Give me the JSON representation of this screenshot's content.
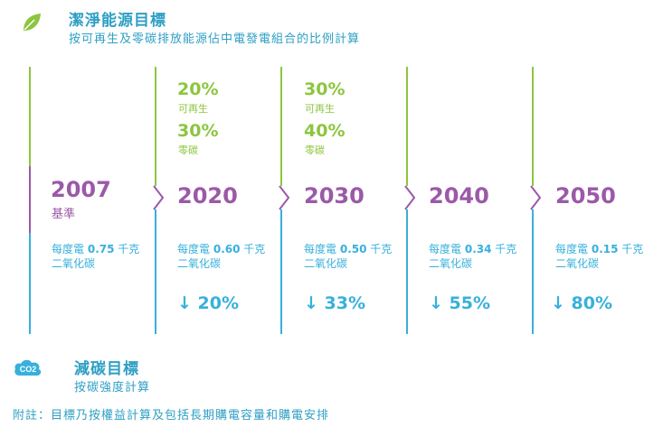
{
  "header": {
    "title": "潔淨能源目標",
    "subtitle": "按可再生及零碳排放能源佔中電發電組合的比例計算",
    "icon": "leaf-icon"
  },
  "colors": {
    "green": "#8cc63f",
    "purple": "#9b59a8",
    "blue": "#37b0dc",
    "text_blue": "#2d9fc4"
  },
  "timeline": [
    {
      "year": "2007",
      "baseline_label": "基準",
      "renewable_pct": "",
      "renewable_label": "",
      "zero_carbon_pct": "",
      "zero_carbon_label": "",
      "intensity_prefix": "每度電",
      "intensity_value": "0.75",
      "intensity_unit": "千克",
      "intensity_suffix": "二氧化碳",
      "reduction": ""
    },
    {
      "year": "2020",
      "baseline_label": "",
      "renewable_pct": "20%",
      "renewable_label": "可再生",
      "zero_carbon_pct": "30%",
      "zero_carbon_label": "零碳",
      "intensity_prefix": "每度電",
      "intensity_value": "0.60",
      "intensity_unit": "千克",
      "intensity_suffix": "二氧化碳",
      "reduction": "↓ 20%"
    },
    {
      "year": "2030",
      "baseline_label": "",
      "renewable_pct": "30%",
      "renewable_label": "可再生",
      "zero_carbon_pct": "40%",
      "zero_carbon_label": "零碳",
      "intensity_prefix": "每度電",
      "intensity_value": "0.50",
      "intensity_unit": "千克",
      "intensity_suffix": "二氧化碳",
      "reduction": "↓ 33%"
    },
    {
      "year": "2040",
      "baseline_label": "",
      "renewable_pct": "",
      "renewable_label": "",
      "zero_carbon_pct": "",
      "zero_carbon_label": "",
      "intensity_prefix": "每度電",
      "intensity_value": "0.34",
      "intensity_unit": "千克",
      "intensity_suffix": "二氧化碳",
      "reduction": "↓ 55%"
    },
    {
      "year": "2050",
      "baseline_label": "",
      "renewable_pct": "",
      "renewable_label": "",
      "zero_carbon_pct": "",
      "zero_carbon_label": "",
      "intensity_prefix": "每度電",
      "intensity_value": "0.15",
      "intensity_unit": "千克",
      "intensity_suffix": "二氧化碳",
      "reduction": "↓ 80%"
    }
  ],
  "carbon_section": {
    "title": "減碳目標",
    "subtitle": "按碳強度計算",
    "icon": "co2-cloud-icon",
    "icon_text": "CO2"
  },
  "footnote": "附註：目標乃按權益計算及包括長期購電容量和購電安排"
}
